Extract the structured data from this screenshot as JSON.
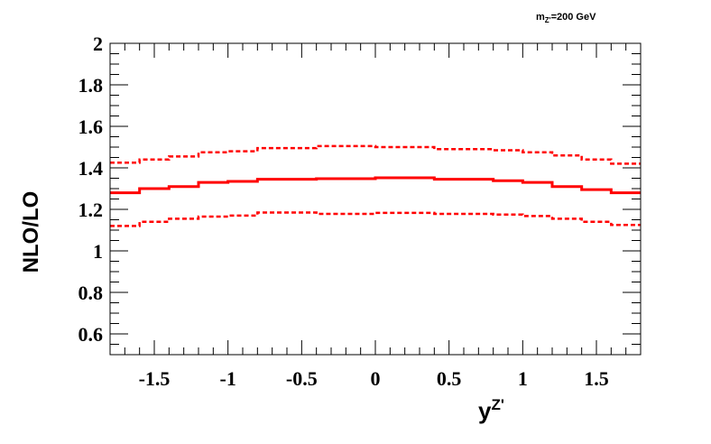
{
  "chart_data": {
    "type": "line",
    "annotation": {
      "main": "m",
      "sub": "Z'",
      "rest": "=200 GeV"
    },
    "xlabel": {
      "main": "y",
      "sup": "Z'"
    },
    "ylabel": "NLO/LO",
    "xlim": [
      -1.8,
      1.8
    ],
    "ylim": [
      0.5,
      2.0
    ],
    "x_ticks": [
      -1.5,
      -1,
      -0.5,
      0,
      0.5,
      1,
      1.5
    ],
    "x_tick_labels": [
      "-1.5",
      "-1",
      "-0.5",
      "0",
      "0.5",
      "1",
      "1.5"
    ],
    "y_ticks": [
      0.6,
      0.8,
      1,
      1.2,
      1.4,
      1.6,
      1.8,
      2
    ],
    "y_tick_labels": [
      "0.6",
      "0.8",
      "1",
      "1.2",
      "1.4",
      "1.6",
      "1.8",
      "2"
    ],
    "bin_edges": [
      -1.8,
      -1.6,
      -1.4,
      -1.2,
      -1.0,
      -0.8,
      -0.4,
      0.0,
      0.4,
      0.8,
      1.0,
      1.2,
      1.4,
      1.6,
      1.8
    ],
    "series": [
      {
        "style": "solid",
        "color": "#ff0000",
        "values": [
          1.28,
          1.3,
          1.31,
          1.33,
          1.335,
          1.345,
          1.348,
          1.352,
          1.345,
          1.338,
          1.33,
          1.31,
          1.295,
          1.28
        ]
      },
      {
        "style": "dashed",
        "color": "#ff0000",
        "values": [
          1.425,
          1.44,
          1.455,
          1.475,
          1.48,
          1.495,
          1.505,
          1.5,
          1.49,
          1.485,
          1.475,
          1.46,
          1.44,
          1.42
        ]
      },
      {
        "style": "dashed",
        "color": "#ff0000",
        "values": [
          1.12,
          1.14,
          1.155,
          1.165,
          1.17,
          1.185,
          1.178,
          1.183,
          1.178,
          1.175,
          1.168,
          1.155,
          1.14,
          1.125
        ]
      }
    ],
    "grid": false
  }
}
